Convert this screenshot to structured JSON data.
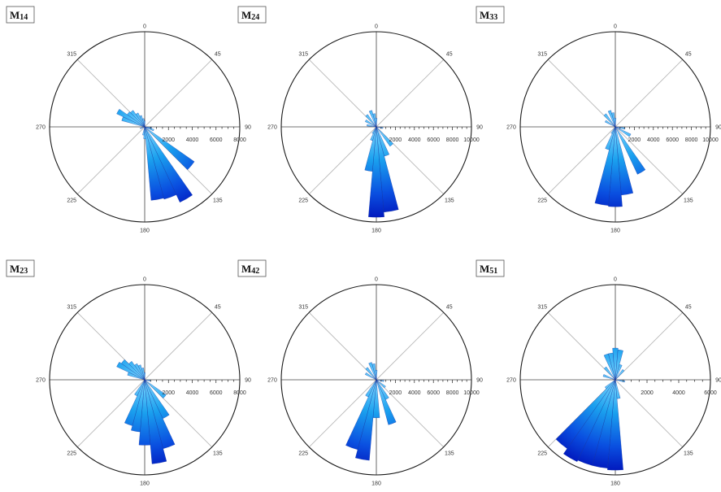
{
  "chart_data": [
    {
      "type": "polar-histogram",
      "panel_label": "M14",
      "angle_labels": [
        "0",
        "45",
        "90",
        "135",
        "180",
        "225",
        "270",
        "315"
      ],
      "radial_ticks": [
        "2000",
        "4000",
        "6000",
        "8000"
      ],
      "r_max": 8000,
      "bins": [
        {
          "angle": 290,
          "value": 2000
        },
        {
          "angle": 300,
          "value": 2600
        },
        {
          "angle": 310,
          "value": 1800
        },
        {
          "angle": 320,
          "value": 1700
        },
        {
          "angle": 330,
          "value": 1300
        },
        {
          "angle": 340,
          "value": 1000
        },
        {
          "angle": 350,
          "value": 700
        },
        {
          "angle": 0,
          "value": 500
        },
        {
          "angle": 100,
          "value": 600
        },
        {
          "angle": 110,
          "value": 800
        },
        {
          "angle": 130,
          "value": 5100
        },
        {
          "angle": 150,
          "value": 7000
        },
        {
          "angle": 160,
          "value": 6300
        },
        {
          "angle": 170,
          "value": 6200
        },
        {
          "angle": 180,
          "value": 1000
        },
        {
          "angle": 190,
          "value": 700
        },
        {
          "angle": 250,
          "value": 400
        }
      ]
    },
    {
      "type": "polar-histogram",
      "panel_label": "M24",
      "angle_labels": [
        "0",
        "45",
        "90",
        "135",
        "180",
        "225",
        "270",
        "315"
      ],
      "radial_ticks": [
        "2000",
        "4000",
        "6000",
        "8000",
        "10000"
      ],
      "r_max": 10000,
      "bins": [
        {
          "angle": 280,
          "value": 1000
        },
        {
          "angle": 300,
          "value": 1300
        },
        {
          "angle": 320,
          "value": 1600
        },
        {
          "angle": 340,
          "value": 1800
        },
        {
          "angle": 350,
          "value": 1400
        },
        {
          "angle": 0,
          "value": 900
        },
        {
          "angle": 100,
          "value": 700
        },
        {
          "angle": 140,
          "value": 2500
        },
        {
          "angle": 160,
          "value": 3200
        },
        {
          "angle": 170,
          "value": 9000
        },
        {
          "angle": 180,
          "value": 9500
        },
        {
          "angle": 190,
          "value": 4700
        },
        {
          "angle": 200,
          "value": 1500
        },
        {
          "angle": 210,
          "value": 800
        }
      ]
    },
    {
      "type": "polar-histogram",
      "panel_label": "M33",
      "angle_labels": [
        "0",
        "45",
        "90",
        "135",
        "180",
        "225",
        "270",
        "315"
      ],
      "radial_ticks": [
        "2000",
        "4000",
        "6000",
        "8000",
        "10000"
      ],
      "r_max": 10000,
      "bins": [
        {
          "angle": 300,
          "value": 1200
        },
        {
          "angle": 320,
          "value": 1700
        },
        {
          "angle": 340,
          "value": 1800
        },
        {
          "angle": 350,
          "value": 1500
        },
        {
          "angle": 0,
          "value": 900
        },
        {
          "angle": 100,
          "value": 1000
        },
        {
          "angle": 120,
          "value": 1800
        },
        {
          "angle": 150,
          "value": 5500
        },
        {
          "angle": 170,
          "value": 7200
        },
        {
          "angle": 180,
          "value": 8400
        },
        {
          "angle": 190,
          "value": 8300
        },
        {
          "angle": 200,
          "value": 2500
        },
        {
          "angle": 210,
          "value": 800
        }
      ]
    },
    {
      "type": "polar-histogram",
      "panel_label": "M23",
      "angle_labels": [
        "0",
        "45",
        "90",
        "135",
        "180",
        "225",
        "270",
        "315"
      ],
      "radial_ticks": [
        "2000",
        "4000",
        "6000",
        "8000"
      ],
      "r_max": 8000,
      "bins": [
        {
          "angle": 290,
          "value": 1500
        },
        {
          "angle": 300,
          "value": 2600
        },
        {
          "angle": 310,
          "value": 2400
        },
        {
          "angle": 320,
          "value": 1900
        },
        {
          "angle": 330,
          "value": 1500
        },
        {
          "angle": 340,
          "value": 1300
        },
        {
          "angle": 350,
          "value": 1000
        },
        {
          "angle": 0,
          "value": 600
        },
        {
          "angle": 100,
          "value": 500
        },
        {
          "angle": 130,
          "value": 2200
        },
        {
          "angle": 150,
          "value": 3600
        },
        {
          "angle": 160,
          "value": 6000
        },
        {
          "angle": 170,
          "value": 7100
        },
        {
          "angle": 180,
          "value": 5500
        },
        {
          "angle": 190,
          "value": 4400
        },
        {
          "angle": 200,
          "value": 4000
        },
        {
          "angle": 210,
          "value": 1500
        }
      ]
    },
    {
      "type": "polar-histogram",
      "panel_label": "M42",
      "angle_labels": [
        "0",
        "45",
        "90",
        "135",
        "180",
        "225",
        "270",
        "315"
      ],
      "radial_ticks": [
        "2000",
        "4000",
        "6000",
        "8000",
        "10000"
      ],
      "r_max": 10000,
      "bins": [
        {
          "angle": 300,
          "value": 1300
        },
        {
          "angle": 320,
          "value": 1600
        },
        {
          "angle": 340,
          "value": 1900
        },
        {
          "angle": 350,
          "value": 1700
        },
        {
          "angle": 0,
          "value": 1000
        },
        {
          "angle": 100,
          "value": 800
        },
        {
          "angle": 130,
          "value": 1200
        },
        {
          "angle": 150,
          "value": 2300
        },
        {
          "angle": 160,
          "value": 4900
        },
        {
          "angle": 180,
          "value": 4000
        },
        {
          "angle": 190,
          "value": 8500
        },
        {
          "angle": 200,
          "value": 7600
        },
        {
          "angle": 210,
          "value": 2000
        }
      ]
    },
    {
      "type": "polar-histogram",
      "panel_label": "M51",
      "angle_labels": [
        "0",
        "45",
        "90",
        "135",
        "180",
        "225",
        "270",
        "315"
      ],
      "radial_ticks": [
        "2000",
        "4000",
        "6000"
      ],
      "r_max": 6000,
      "bins": [
        {
          "angle": 290,
          "value": 800
        },
        {
          "angle": 320,
          "value": 1000
        },
        {
          "angle": 340,
          "value": 1700
        },
        {
          "angle": 350,
          "value": 1700
        },
        {
          "angle": 0,
          "value": 2000
        },
        {
          "angle": 10,
          "value": 1900
        },
        {
          "angle": 20,
          "value": 1000
        },
        {
          "angle": 40,
          "value": 800
        },
        {
          "angle": 100,
          "value": 600
        },
        {
          "angle": 170,
          "value": 1200
        },
        {
          "angle": 180,
          "value": 5700
        },
        {
          "angle": 190,
          "value": 5600
        },
        {
          "angle": 200,
          "value": 5600
        },
        {
          "angle": 210,
          "value": 5700
        },
        {
          "angle": 220,
          "value": 5300
        },
        {
          "angle": 230,
          "value": 800
        }
      ]
    }
  ]
}
